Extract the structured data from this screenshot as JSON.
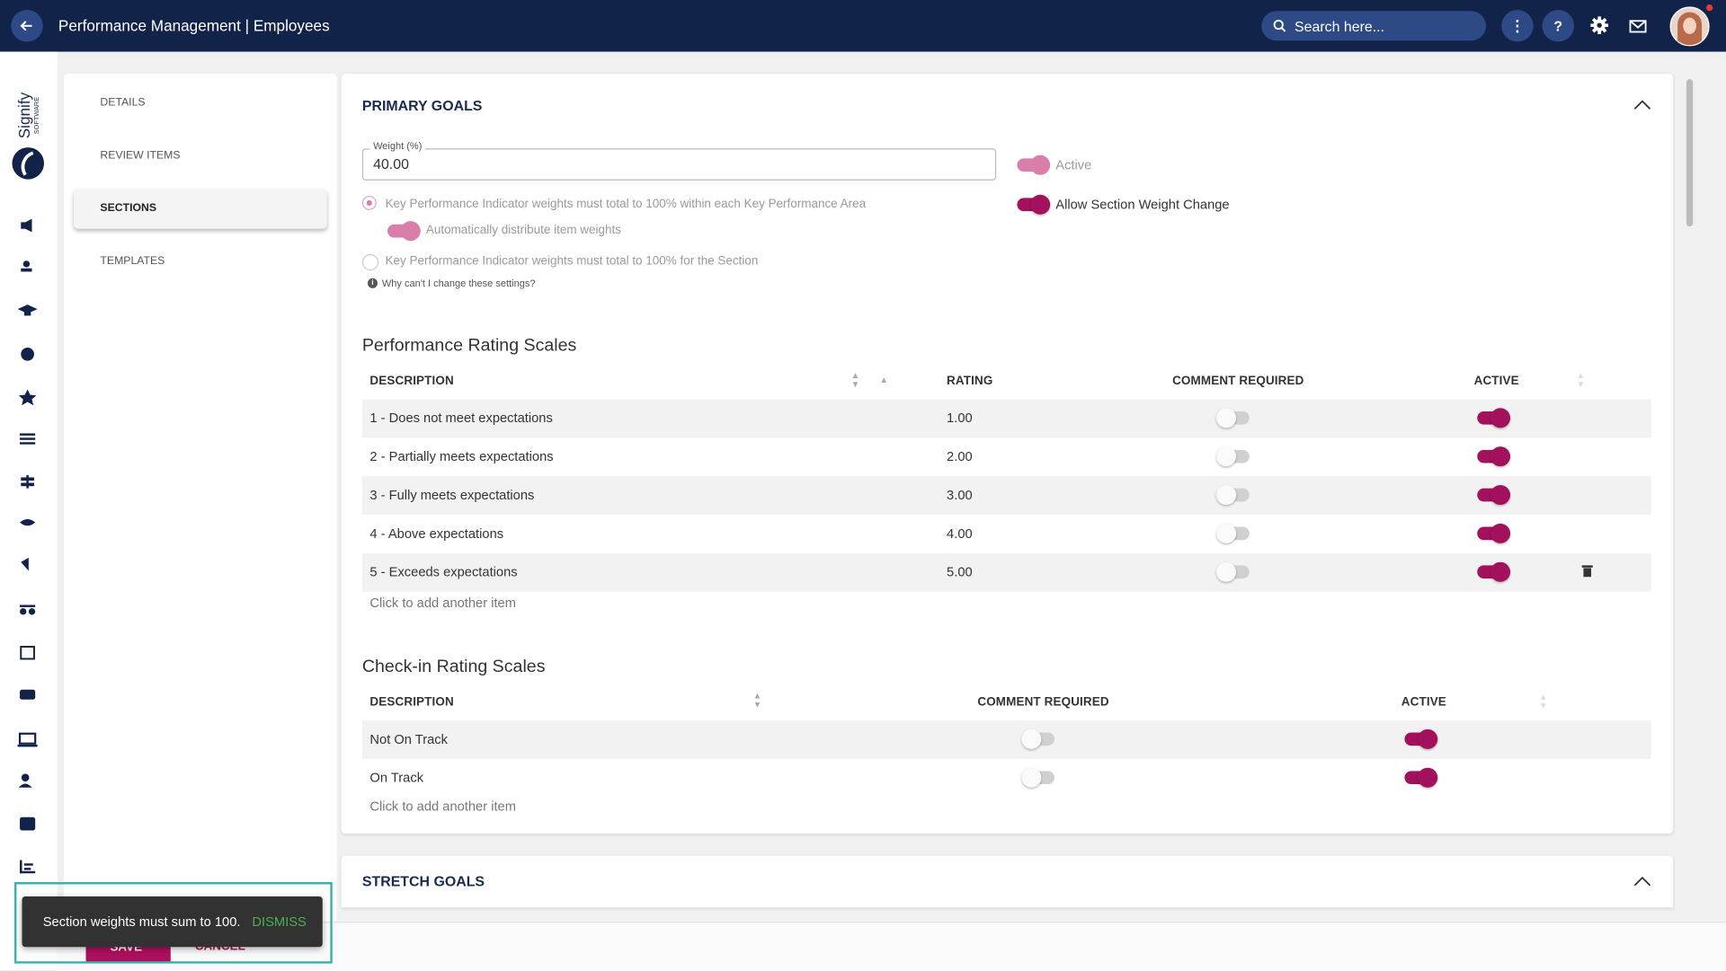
{
  "header": {
    "title": "Performance Management | Employees",
    "search_placeholder": "Search here..."
  },
  "brand": {
    "name": "Signify",
    "sub": "SOFTWARE"
  },
  "nav": {
    "items": [
      "DETAILS",
      "REVIEW ITEMS",
      "SECTIONS",
      "TEMPLATES"
    ],
    "active_index": 2
  },
  "section": {
    "title": "PRIMARY GOALS",
    "weight_label": "Weight (%)",
    "weight_value": "40.00",
    "active_label": "Active",
    "allow_label": "Allow Section Weight Change",
    "option1": "Key Performance Indicator weights must total to 100% within each Key Performance Area",
    "auto_distribute": "Automatically distribute item weights",
    "option2": "Key Performance Indicator weights must total to 100% for the Section",
    "help": "Why can't I change these settings?"
  },
  "performance_scales": {
    "title": "Performance Rating Scales",
    "columns": [
      "DESCRIPTION",
      "RATING",
      "COMMENT REQUIRED",
      "ACTIVE"
    ],
    "rows": [
      {
        "description": "1 - Does not meet expectations",
        "rating": "1.00",
        "comment_required": false,
        "active": true
      },
      {
        "description": "2 - Partially meets expectations",
        "rating": "2.00",
        "comment_required": false,
        "active": true
      },
      {
        "description": "3 - Fully meets expectations",
        "rating": "3.00",
        "comment_required": false,
        "active": true
      },
      {
        "description": "4 - Above expectations",
        "rating": "4.00",
        "comment_required": false,
        "active": true
      },
      {
        "description": "5 - Exceeds expectations",
        "rating": "5.00",
        "comment_required": false,
        "active": true
      }
    ],
    "add_item": "Click to add another item"
  },
  "checkin_scales": {
    "title": "Check-in Rating Scales",
    "columns": [
      "DESCRIPTION",
      "COMMENT REQUIRED",
      "ACTIVE"
    ],
    "rows": [
      {
        "description": "Not On Track",
        "comment_required": false,
        "active": true
      },
      {
        "description": "On Track",
        "comment_required": false,
        "active": true
      }
    ],
    "add_item": "Click to add another item"
  },
  "stretch": {
    "title": "STRETCH GOALS"
  },
  "buttons": {
    "save": "SAVE",
    "cancel": "CANCEL"
  },
  "toast": {
    "message": "Section weights must sum to 100.",
    "action": "DISMISS"
  }
}
